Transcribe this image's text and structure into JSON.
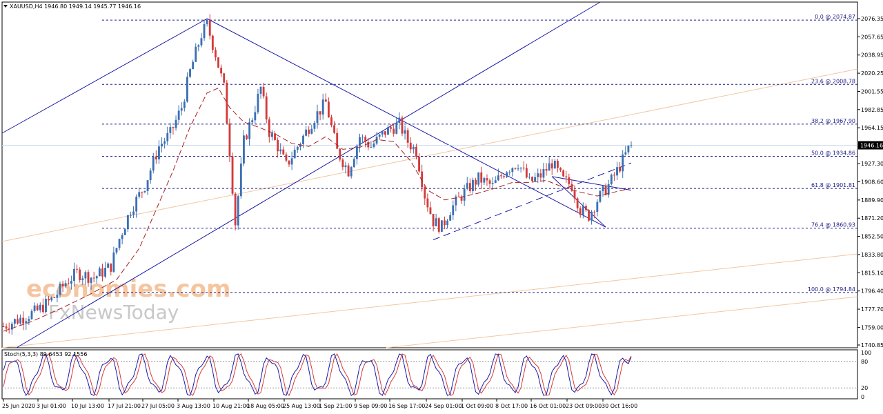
{
  "header": {
    "symbol_line": "XAUUSD,H4  1946.80 1949.14 1945.77 1946.16"
  },
  "colors": {
    "bull": "#3b6fb3",
    "bear": "#d33a3a",
    "fib": "#1c1c8a",
    "trend": "#1a1aa8",
    "ma": "#a81f1f",
    "fan": "#f2c6a3",
    "bid": "#c8dcef",
    "stoch_main": "#1a1aa8",
    "stoch_signal": "#d33a3a",
    "price_tag_bg": "#000000"
  },
  "chart_data": {
    "type": "candlestick",
    "symbol": "XAUUSD",
    "timeframe": "H4",
    "ohlc_last": {
      "open": 1946.8,
      "high": 1949.14,
      "low": 1945.77,
      "close": 1946.16
    },
    "last_price": 1946.16,
    "last_price_label": "1946.16",
    "ylim": [
      1740.85,
      2085.0
    ],
    "y_ticks": [
      "2076.35",
      "2057.65",
      "2038.95",
      "2020.25",
      "2001.55",
      "1982.85",
      "1964.15",
      "1945.45",
      "1927.30",
      "1908.60",
      "1889.90",
      "1871.20",
      "1852.50",
      "1833.80",
      "1815.10",
      "1796.40",
      "1777.70",
      "1759.00",
      "1740.85"
    ],
    "x_ticks": [
      "25 Jun 2020",
      "3 Jul 01:00",
      "10 Jul 13:00",
      "17 Jul 21:00",
      "27 Jul 05:00",
      "3 Aug 13:00",
      "10 Aug 21:00",
      "18 Aug 05:00",
      "25 Aug 13:00",
      "1 Sep 21:00",
      "9 Sep 09:00",
      "16 Sep 17:00",
      "24 Sep 01:00",
      "1 Oct 09:00",
      "8 Oct 17:00",
      "16 Oct 01:00",
      "23 Oct 09:00",
      "30 Oct 16:00"
    ],
    "price_path": [
      [
        0,
        1760
      ],
      [
        6,
        1768
      ],
      [
        12,
        1776
      ],
      [
        18,
        1790
      ],
      [
        22,
        1805
      ],
      [
        26,
        1815
      ],
      [
        32,
        1810
      ],
      [
        38,
        1822
      ],
      [
        41,
        1850
      ],
      [
        45,
        1880
      ],
      [
        50,
        1905
      ],
      [
        55,
        1945
      ],
      [
        59,
        1958
      ],
      [
        63,
        1985
      ],
      [
        66,
        2022
      ],
      [
        70,
        2060
      ],
      [
        72,
        2070
      ],
      [
        75,
        2040
      ],
      [
        78,
        2005
      ],
      [
        80,
        1940
      ],
      [
        82,
        1866
      ],
      [
        85,
        1950
      ],
      [
        88,
        1975
      ],
      [
        91,
        2005
      ],
      [
        94,
        1960
      ],
      [
        97,
        1945
      ],
      [
        100,
        1925
      ],
      [
        105,
        1950
      ],
      [
        110,
        1975
      ],
      [
        114,
        1990
      ],
      [
        118,
        1940
      ],
      [
        122,
        1920
      ],
      [
        126,
        1955
      ],
      [
        130,
        1945
      ],
      [
        135,
        1960
      ],
      [
        140,
        1968
      ],
      [
        143,
        1950
      ],
      [
        146,
        1940
      ],
      [
        149,
        1895
      ],
      [
        152,
        1868
      ],
      [
        155,
        1862
      ],
      [
        158,
        1880
      ],
      [
        163,
        1898
      ],
      [
        168,
        1912
      ],
      [
        173,
        1904
      ],
      [
        178,
        1922
      ],
      [
        182,
        1928
      ],
      [
        186,
        1908
      ],
      [
        190,
        1915
      ],
      [
        194,
        1928
      ],
      [
        198,
        1910
      ],
      [
        201,
        1905
      ],
      [
        204,
        1880
      ],
      [
        207,
        1874
      ],
      [
        210,
        1890
      ],
      [
        214,
        1905
      ],
      [
        218,
        1925
      ],
      [
        222,
        1948
      ]
    ],
    "ma_path": [
      [
        0,
        1755
      ],
      [
        10,
        1765
      ],
      [
        20,
        1778
      ],
      [
        30,
        1792
      ],
      [
        40,
        1808
      ],
      [
        48,
        1840
      ],
      [
        54,
        1880
      ],
      [
        60,
        1920
      ],
      [
        66,
        1965
      ],
      [
        72,
        2000
      ],
      [
        76,
        2005
      ],
      [
        80,
        1985
      ],
      [
        85,
        1970
      ],
      [
        90,
        1965
      ],
      [
        96,
        1958
      ],
      [
        102,
        1948
      ],
      [
        108,
        1945
      ],
      [
        114,
        1955
      ],
      [
        120,
        1942
      ],
      [
        126,
        1944
      ],
      [
        132,
        1952
      ],
      [
        138,
        1950
      ],
      [
        144,
        1930
      ],
      [
        150,
        1900
      ],
      [
        156,
        1890
      ],
      [
        162,
        1893
      ],
      [
        168,
        1897
      ],
      [
        174,
        1902
      ],
      [
        180,
        1908
      ],
      [
        186,
        1908
      ],
      [
        192,
        1910
      ],
      [
        198,
        1903
      ],
      [
        204,
        1898
      ],
      [
        210,
        1894
      ],
      [
        216,
        1898
      ],
      [
        222,
        1902
      ]
    ],
    "fib_levels": [
      {
        "label": "0.0 @ 2074.87",
        "price": 2074.87
      },
      {
        "label": "23.6 @ 2008.78",
        "price": 2008.78
      },
      {
        "label": "38.2 @ 1967.90",
        "price": 1967.9
      },
      {
        "label": "50.0 @ 1934.86",
        "price": 1934.86
      },
      {
        "label": "61.8 @ 1901.81",
        "price": 1901.81
      },
      {
        "label": "76.4 @ 1860.93",
        "price": 1860.93
      },
      {
        "label": "100.0 @ 1794.84",
        "price": 1794.84
      }
    ],
    "indicator": {
      "label": "Stoch(5,3,3) 89.6453 92.1556",
      "main": 89.6453,
      "signal": 92.1556,
      "levels": [
        80,
        20
      ],
      "y_ticks": [
        "100",
        "80",
        "20",
        "0"
      ]
    }
  },
  "watermark": {
    "line1": "economies.com",
    "line2": "FxNewsToday"
  }
}
